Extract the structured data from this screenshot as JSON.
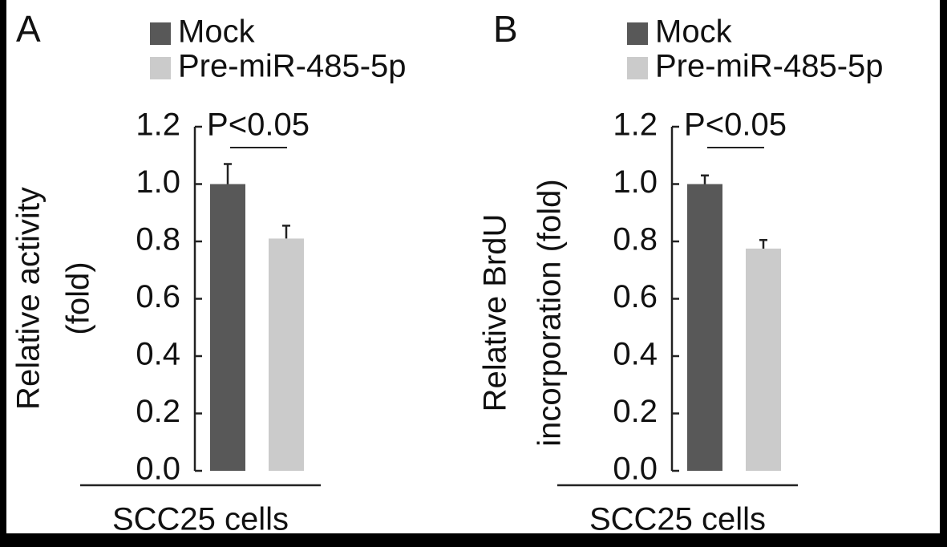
{
  "chart_data": [
    {
      "type": "bar",
      "title": "A",
      "ylabel": [
        "Relative activity",
        "(fold)"
      ],
      "xlabel": "SCC25 cells",
      "categories": [
        "SCC25 cells"
      ],
      "annotation": "P<0.05",
      "legend": "top",
      "series": [
        {
          "name": "Mock",
          "color": "#585858",
          "values": [
            1.0
          ],
          "errors": [
            0.07
          ]
        },
        {
          "name": "Pre-miR-485-5p",
          "color": "#cbcbcb",
          "values": [
            0.81
          ],
          "errors": [
            0.045
          ]
        }
      ],
      "ylim": [
        0,
        1.2
      ],
      "yticks": [
        {
          "value": 0,
          "label": "0.0"
        },
        0.2,
        0.4,
        0.6,
        0.8,
        {
          "value": 1,
          "label": "1.0"
        },
        1.2
      ]
    },
    {
      "type": "bar",
      "title": "B",
      "ylabel": [
        "Relative BrdU",
        "incorporation (fold)"
      ],
      "xlabel": "SCC25 cells",
      "categories": [
        "SCC25 cells"
      ],
      "annotation": "P<0.05",
      "legend": "top",
      "series": [
        {
          "name": "Mock",
          "color": "#585858",
          "values": [
            1.0
          ],
          "errors": [
            0.03
          ]
        },
        {
          "name": "Pre-miR-485-5p",
          "color": "#cbcbcb",
          "values": [
            0.775
          ],
          "errors": [
            0.03
          ]
        }
      ],
      "ylim": [
        0,
        1.2
      ],
      "yticks": [
        {
          "value": 0,
          "label": "0.0"
        },
        0.2,
        0.4,
        0.6,
        0.8,
        {
          "value": 1,
          "label": "1.0"
        },
        1.2
      ]
    }
  ]
}
